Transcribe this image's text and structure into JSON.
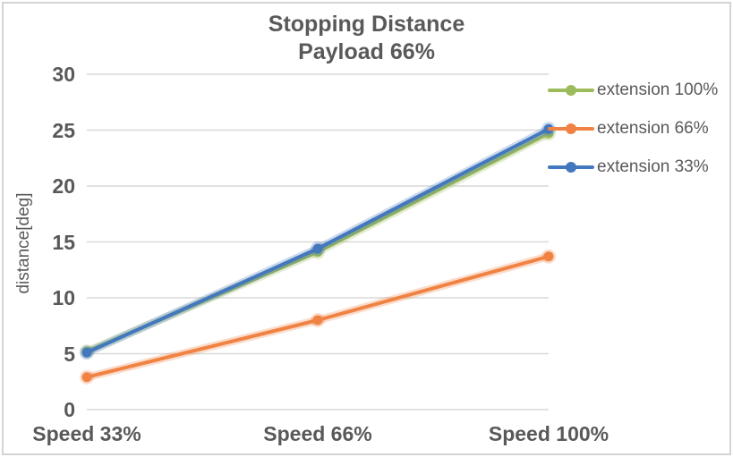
{
  "title": {
    "line1": "Stopping Distance",
    "line2": "Payload 66%"
  },
  "colors": {
    "text": "#595959",
    "gridline": "#d9d9d9",
    "frame_border": "#d4d4d4",
    "series_green": "#9cbb5b",
    "series_orange": "#f08343",
    "series_blue": "#4478be"
  },
  "chart_data": {
    "type": "line",
    "title": "Stopping Distance Payload 66%",
    "xlabel": "",
    "ylabel": "distance[deg]",
    "categories": [
      "Speed 33%",
      "Speed 66%",
      "Speed 100%"
    ],
    "series": [
      {
        "name": "extension 100%",
        "color": "#9cbb5b",
        "values": [
          5.2,
          14.1,
          24.7
        ]
      },
      {
        "name": "extension 66%",
        "color": "#f08343",
        "values": [
          2.9,
          8.0,
          13.7
        ]
      },
      {
        "name": "extension 33%",
        "color": "#4478be",
        "values": [
          5.1,
          14.4,
          25.1
        ]
      }
    ],
    "ylim": [
      0,
      30
    ],
    "yticks": [
      0,
      5,
      10,
      15,
      20,
      25,
      30
    ],
    "grid": true,
    "legend_position": "right",
    "marker": "circle"
  }
}
